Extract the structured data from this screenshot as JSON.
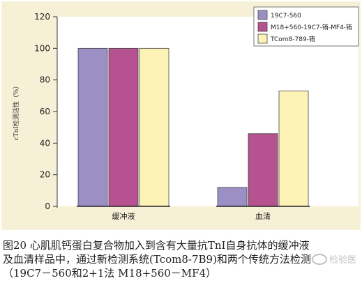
{
  "chart_data": {
    "type": "bar",
    "ylabel": "cTnI检测活性（%）",
    "xlabel": "",
    "ylim": [
      0,
      120
    ],
    "yticks": [
      0,
      20,
      40,
      60,
      80,
      100,
      120
    ],
    "categories": [
      "缓冲液",
      "血清"
    ],
    "series": [
      {
        "name": "19C7-560",
        "color": "#9b8fc6",
        "values": [
          100,
          12
        ]
      },
      {
        "name": "M18+560-19C7-铕-MF4-铕",
        "color": "#b5528f",
        "values": [
          100,
          46
        ]
      },
      {
        "name": "TCom8-789-铕",
        "color": "#fdf3b6",
        "values": [
          100,
          73
        ]
      }
    ],
    "legend_position": "top-right",
    "grid": false
  },
  "caption": {
    "line1": "图20  心肌肌钙蛋白复合物加入到含有大量抗TnI自身抗体的缓冲液",
    "line2": "及血清样品中，通过新检测系统(Tcom8-7B9)和两个传统方法检测",
    "line3": "（19C7－560和2+1法 M18+560－MF4）"
  },
  "watermark": {
    "text": "检验医"
  }
}
